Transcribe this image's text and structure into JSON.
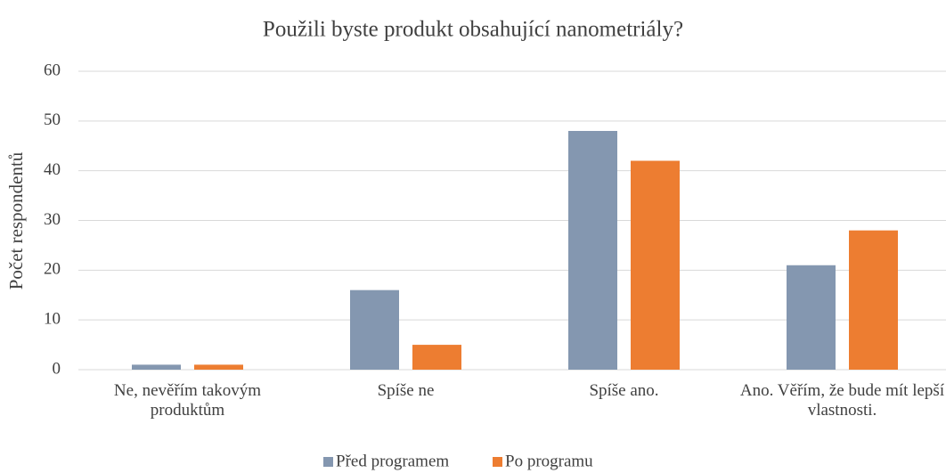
{
  "chart_data": {
    "type": "bar",
    "title": "Použili byste produkt obsahující nanometriály?",
    "y_label": "Počet respondentů",
    "categories": [
      "Ne, nevěřím takovým produktům",
      "Spíše ne",
      "Spíše ano.",
      "Ano. Věřím, že bude mít lepší vlastnosti."
    ],
    "series": [
      {
        "name": "Před programem",
        "color": "#8497b0",
        "values": [
          1,
          16,
          48,
          21
        ]
      },
      {
        "name": "Po programu",
        "color": "#ed7d31",
        "values": [
          1,
          5,
          42,
          28
        ]
      }
    ],
    "ylim": [
      0,
      60
    ],
    "yticks": [
      0,
      10,
      20,
      30,
      40,
      50,
      60
    ],
    "grid": true,
    "legend": "bottom"
  }
}
